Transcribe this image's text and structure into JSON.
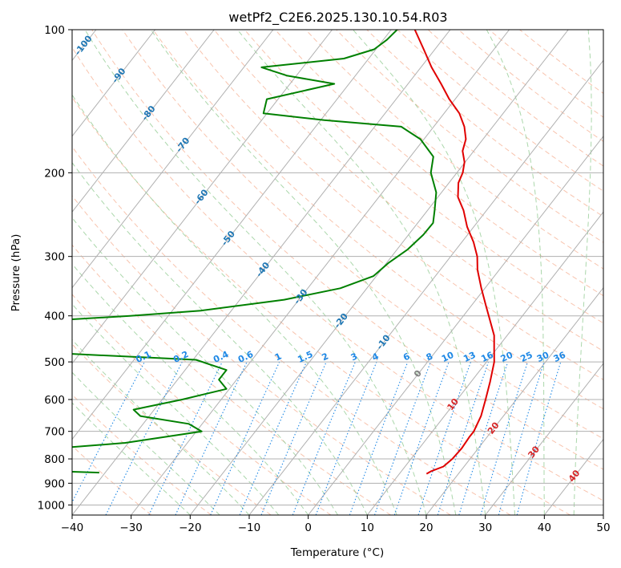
{
  "chart_data": {
    "type": "line",
    "subtype": "skew-t log-p diagram",
    "title": "wetPf2_C2E6.2025.130.10.54.R03",
    "xlabel": "Temperature (°C)",
    "ylabel": "Pressure (hPa)",
    "xlim": [
      -40,
      50
    ],
    "ylim": [
      1050,
      100
    ],
    "y_scale": "log",
    "grid": true,
    "x_ticks": [
      -40,
      -30,
      -20,
      -10,
      0,
      10,
      20,
      30,
      40,
      50
    ],
    "y_ticks": [
      1000,
      900,
      800,
      700,
      600,
      500,
      400,
      300,
      200,
      100
    ],
    "mixing_ratio_labels": [
      "0.1",
      "0.2",
      "0.4",
      "0.6",
      "1",
      "1.5",
      "2",
      "3",
      "4",
      "6",
      "8",
      "10",
      "13",
      "16",
      "20",
      "25",
      "30",
      "36"
    ],
    "mixing_ratios": [
      0.1,
      0.2,
      0.4,
      0.6,
      1,
      1.5,
      2,
      3,
      4,
      6,
      8,
      10,
      13,
      16,
      20,
      25,
      30,
      36
    ],
    "isotherm_labels_blue": [
      -100,
      -90,
      -80,
      -70,
      -60,
      -50,
      -40,
      -30,
      -20,
      -10
    ],
    "isotherm_labels_gray": [
      0
    ],
    "isotherm_labels_red": [
      10,
      20,
      30,
      40
    ],
    "colors": {
      "temperature": "#e00000",
      "dewpoint": "#008000",
      "isotherm": "#b0b0b0",
      "dry_adiabat": "#f4a582",
      "moist_adiabat": "#8fc98f",
      "mixing_ratio": "#1e88e5",
      "isotherm_label_cold": "#1f77b4",
      "isotherm_label_warm": "#d62728",
      "isotherm_label_zero": "#7f7f7f",
      "grid": "#b0b0b0"
    },
    "series": [
      {
        "role": "temperature",
        "points": [
          [
            860,
            14.6
          ],
          [
            850,
            15.0
          ],
          [
            830,
            16.5
          ],
          [
            800,
            17.0
          ],
          [
            760,
            17.2
          ],
          [
            720,
            17.0
          ],
          [
            700,
            17.0
          ],
          [
            650,
            16.2
          ],
          [
            600,
            14.8
          ],
          [
            550,
            13.2
          ],
          [
            500,
            11.3
          ],
          [
            470,
            9.6
          ],
          [
            440,
            7.8
          ],
          [
            410,
            5.2
          ],
          [
            380,
            2.4
          ],
          [
            350,
            -0.6
          ],
          [
            320,
            -3.7
          ],
          [
            300,
            -5.5
          ],
          [
            280,
            -8.0
          ],
          [
            260,
            -11.1
          ],
          [
            240,
            -13.9
          ],
          [
            225,
            -16.6
          ],
          [
            210,
            -18.4
          ],
          [
            200,
            -19.0
          ],
          [
            190,
            -20.1
          ],
          [
            180,
            -21.9
          ],
          [
            170,
            -22.9
          ],
          [
            160,
            -24.8
          ],
          [
            150,
            -27.4
          ],
          [
            140,
            -31.0
          ],
          [
            130,
            -34.4
          ],
          [
            120,
            -38.2
          ],
          [
            110,
            -41.9
          ],
          [
            100,
            -46.0
          ]
        ]
      },
      {
        "role": "dewpoint",
        "points": [
          [
            855,
            -41.0
          ],
          [
            840,
            -60.0
          ],
          [
            800,
            -65.0
          ],
          [
            790,
            -48.9
          ],
          [
            770,
            -52.1
          ],
          [
            760,
            -51.5
          ],
          [
            740,
            -40.5
          ],
          [
            700,
            -29.1
          ],
          [
            675,
            -32.3
          ],
          [
            650,
            -41.5
          ],
          [
            630,
            -43.5
          ],
          [
            600,
            -36.6
          ],
          [
            570,
            -30.5
          ],
          [
            545,
            -33.0
          ],
          [
            520,
            -33.0
          ],
          [
            495,
            -39.5
          ],
          [
            480,
            -63.0
          ],
          [
            410,
            -70.0
          ],
          [
            400,
            -56.5
          ],
          [
            390,
            -45.2
          ],
          [
            370,
            -32.5
          ],
          [
            350,
            -24.5
          ],
          [
            330,
            -20.5
          ],
          [
            310,
            -19.7
          ],
          [
            290,
            -18.2
          ],
          [
            270,
            -17.5
          ],
          [
            255,
            -17.4
          ],
          [
            240,
            -18.8
          ],
          [
            220,
            -20.9
          ],
          [
            200,
            -24.4
          ],
          [
            185,
            -26.1
          ],
          [
            170,
            -30.6
          ],
          [
            160,
            -35.5
          ],
          [
            155,
            -49.4
          ],
          [
            150,
            -60.6
          ],
          [
            140,
            -61.9
          ],
          [
            130,
            -52.5
          ],
          [
            125,
            -61.5
          ],
          [
            120,
            -67.0
          ],
          [
            115,
            -54.2
          ],
          [
            110,
            -50.3
          ],
          [
            105,
            -49.4
          ],
          [
            100,
            -49.0
          ]
        ]
      }
    ]
  }
}
